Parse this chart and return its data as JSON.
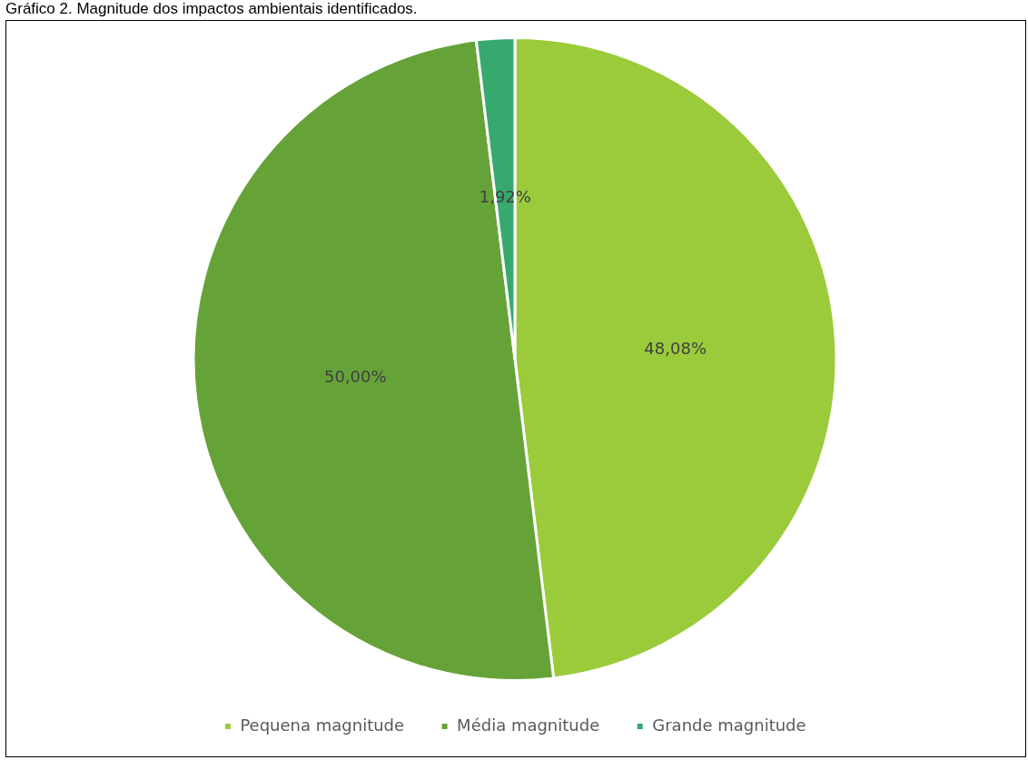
{
  "chart_data": {
    "type": "pie",
    "title": "Gráfico 2. Magnitude dos impactos ambientais identificados.",
    "categories": [
      "Pequena magnitude",
      "Média magnitude",
      "Grande magnitude"
    ],
    "values": [
      48.08,
      50.0,
      1.92
    ],
    "value_labels": [
      "48,08%",
      "50,00%",
      "1,92%"
    ],
    "colors": [
      "#9bcb3b",
      "#65a338",
      "#38a96e"
    ],
    "legend": "bottom"
  }
}
